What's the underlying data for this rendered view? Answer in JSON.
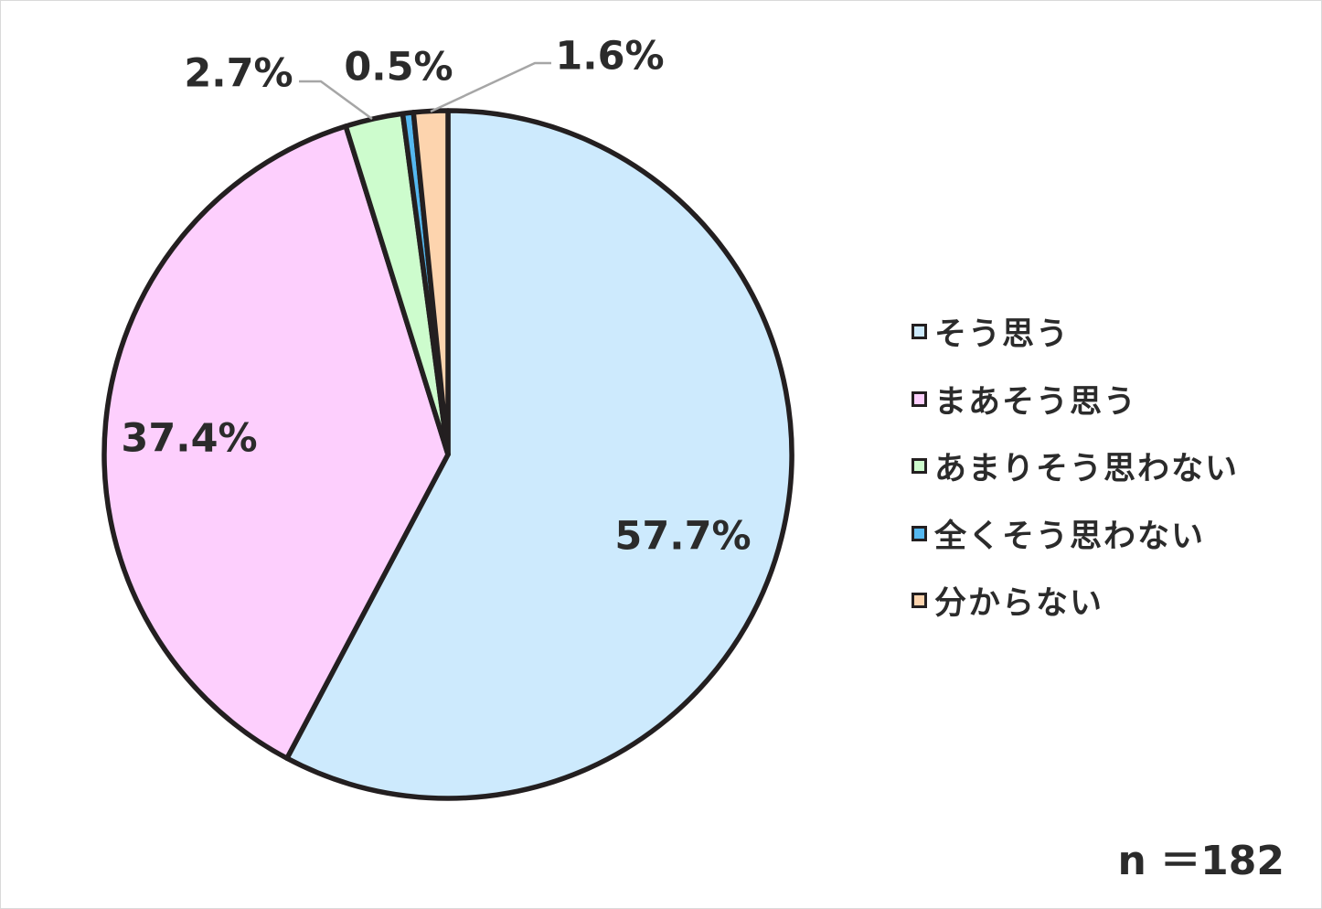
{
  "chart_data": {
    "type": "pie",
    "categories": [
      "そう思う",
      "まあそう思う",
      "あまりそう思わない",
      "全くそう思わない",
      "分からない"
    ],
    "values": [
      57.7,
      37.4,
      2.7,
      0.5,
      1.6
    ],
    "value_labels": [
      "57.7%",
      "37.4%",
      "2.7%",
      "0.5%",
      "1.6%"
    ],
    "colors": [
      "#cdeafd",
      "#fdcffd",
      "#cdfccd",
      "#55b8f0",
      "#fdd4ae"
    ],
    "start_angle": "12 o'clock",
    "direction": "clockwise",
    "legend_position": "right",
    "title": ""
  },
  "note": "n ＝182"
}
